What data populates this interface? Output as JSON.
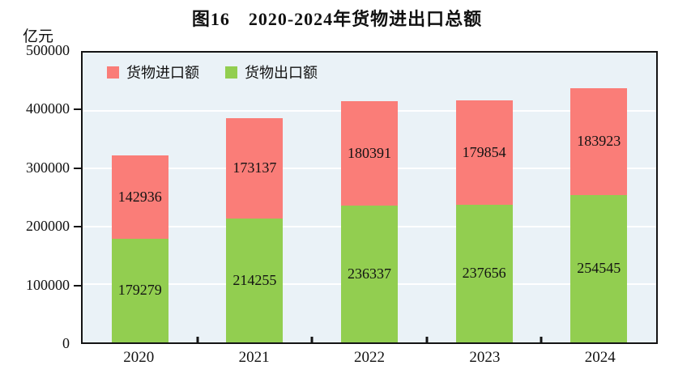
{
  "title": "图16　2020-2024年货物进出口总额",
  "y_unit_label": "亿元",
  "legend": [
    {
      "label": "货物进口额",
      "color": "#FA7D78"
    },
    {
      "label": "货物出口额",
      "color": "#92CE50"
    }
  ],
  "colors": {
    "import_red": "#FA7D78",
    "export_green": "#92CE50",
    "plot_background": "#EAF2F7",
    "gridline": "#FFFFFF",
    "axis": "#141414"
  },
  "chart_data": {
    "type": "bar",
    "stacked": true,
    "title": "图16　2020-2024年货物进出口总额",
    "ylabel": "亿元",
    "categories": [
      "2020",
      "2021",
      "2022",
      "2023",
      "2024"
    ],
    "series": [
      {
        "name": "货物进口额",
        "color": "#FA7D78",
        "values": [
          142936,
          173137,
          180391,
          179854,
          183923
        ]
      },
      {
        "name": "货物出口额",
        "color": "#92CE50",
        "values": [
          179279,
          214255,
          236337,
          237656,
          254545
        ]
      }
    ],
    "stack_order_bottom_to_top": [
      "货物出口额",
      "货物进口额"
    ],
    "ylim": [
      0,
      500000
    ],
    "yticks": [
      0,
      100000,
      200000,
      300000,
      400000,
      500000
    ],
    "grid": true,
    "gridline_color": "#FFFFFF",
    "plot_bg": "#EAF2F7",
    "legend_position": "top-left-inside",
    "value_labels": "inside-center"
  }
}
